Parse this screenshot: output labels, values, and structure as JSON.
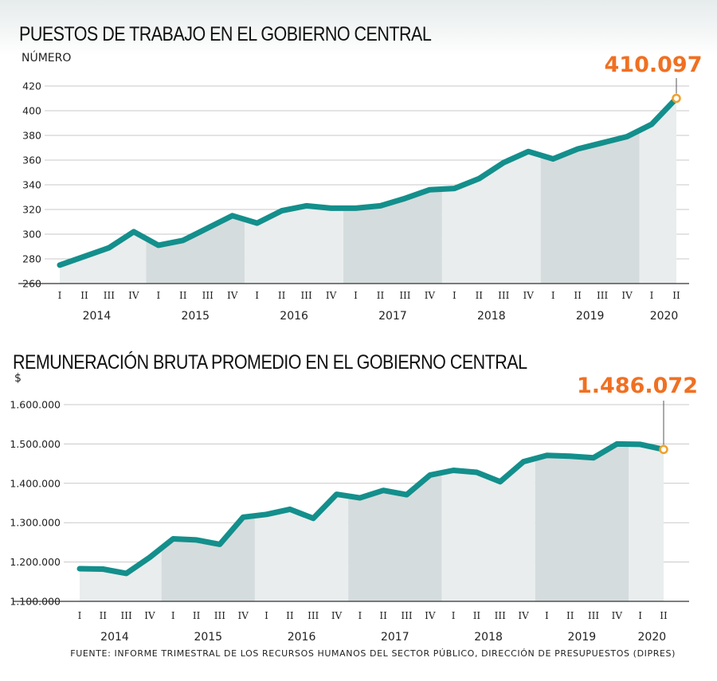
{
  "source": "FUENTE: INFORME TRIMESTRAL DE LOS RECURSOS HUMANOS DEL SECTOR PÚBLICO, DIRECCIÓN DE PRESUPUESTOS (DIPRES)",
  "colors": {
    "line": "#138f8c",
    "highlight": "#f0a02a",
    "callout": "#f07022",
    "band_light": "#e9eded",
    "band_dark": "#d5dcdd",
    "grid": "#c8c8c8"
  },
  "chart_data": [
    {
      "type": "area",
      "title": "PUESTOS DE TRABAJO EN EL GOBIERNO CENTRAL",
      "ylabel": "NÚMERO",
      "ylim": [
        260,
        420
      ],
      "yticks": [
        260,
        280,
        300,
        320,
        340,
        360,
        380,
        400,
        420
      ],
      "ytick_labels": [
        "260",
        "280",
        "300",
        "320",
        "340",
        "360",
        "380",
        "400",
        "420"
      ],
      "quarter_labels": [
        "I",
        "II",
        "III",
        "IV",
        "I",
        "II",
        "III",
        "IV",
        "I",
        "II",
        "III",
        "IV",
        "I",
        "II",
        "III",
        "IV",
        "I",
        "II",
        "III",
        "IV",
        "I",
        "II",
        "III",
        "IV",
        "I",
        "II"
      ],
      "years": [
        {
          "label": "2014",
          "quarters": 4
        },
        {
          "label": "2015",
          "quarters": 4
        },
        {
          "label": "2016",
          "quarters": 4
        },
        {
          "label": "2017",
          "quarters": 4
        },
        {
          "label": "2018",
          "quarters": 4
        },
        {
          "label": "2019",
          "quarters": 4
        },
        {
          "label": "2020",
          "quarters": 2
        }
      ],
      "values": [
        275,
        282,
        289,
        302,
        291,
        295,
        305,
        315,
        309,
        319,
        323,
        321,
        321,
        323,
        329,
        336,
        337,
        345,
        358,
        367,
        361,
        369,
        374,
        379,
        389,
        410
      ],
      "highlight_label": "410.097",
      "grid": true
    },
    {
      "type": "area",
      "title": "REMUNERACIÓN BRUTA PROMEDIO EN EL GOBIERNO CENTRAL",
      "ylabel": "$",
      "ylim": [
        1100000,
        1600000
      ],
      "yticks": [
        1100000,
        1200000,
        1300000,
        1400000,
        1500000,
        1600000
      ],
      "ytick_labels": [
        "1.100.000",
        "1.200.000",
        "1.300.000",
        "1.400.000",
        "1.500.000",
        "1.600.000"
      ],
      "quarter_labels": [
        "I",
        "II",
        "III",
        "IV",
        "I",
        "II",
        "III",
        "IV",
        "I",
        "II",
        "III",
        "IV",
        "I",
        "II",
        "III",
        "IV",
        "I",
        "II",
        "III",
        "IV",
        "I",
        "II",
        "III",
        "IV",
        "I",
        "II"
      ],
      "years": [
        {
          "label": "2014",
          "quarters": 4
        },
        {
          "label": "2015",
          "quarters": 4
        },
        {
          "label": "2016",
          "quarters": 4
        },
        {
          "label": "2017",
          "quarters": 4
        },
        {
          "label": "2018",
          "quarters": 4
        },
        {
          "label": "2019",
          "quarters": 4
        },
        {
          "label": "2020",
          "quarters": 2
        }
      ],
      "values": [
        1183000,
        1182000,
        1171000,
        1212000,
        1259000,
        1256000,
        1245000,
        1314000,
        1321000,
        1334000,
        1311000,
        1372000,
        1363000,
        1382000,
        1371000,
        1421000,
        1433000,
        1428000,
        1404000,
        1455000,
        1471000,
        1469000,
        1465000,
        1500000,
        1499000,
        1486072
      ],
      "highlight_label": "1.486.072",
      "grid": true
    }
  ]
}
